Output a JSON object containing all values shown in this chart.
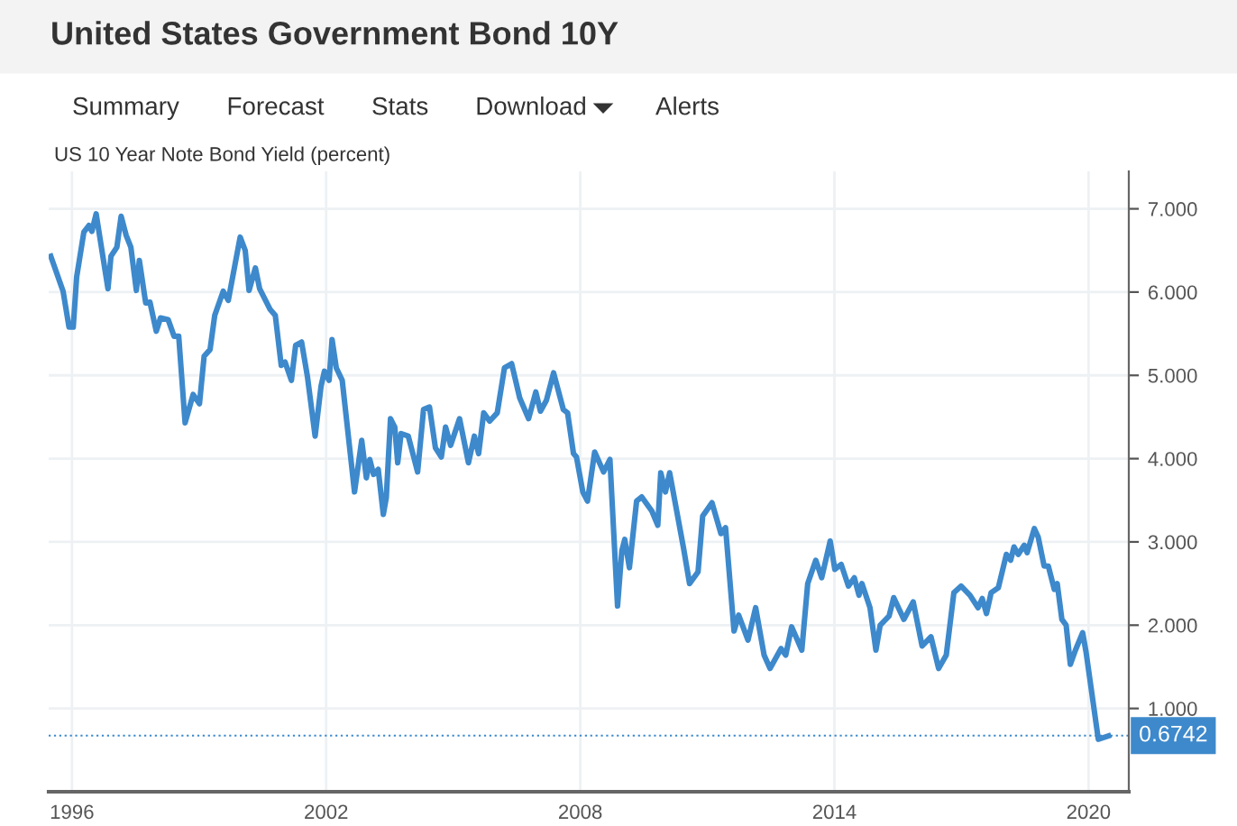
{
  "chart_data": {
    "type": "line",
    "title": "United States Government Bond 10Y",
    "subtitle": "US 10 Year Note Bond Yield (percent)",
    "annotations": [
      "Summary",
      "Forecast",
      "Stats",
      "Download",
      "Alerts"
    ],
    "x": [
      1995.5,
      1995.79,
      1995.93,
      1996.03,
      1996.11,
      1996.28,
      1996.4,
      1996.47,
      1996.57,
      1996.85,
      1996.92,
      1997.06,
      1997.16,
      1997.28,
      1997.39,
      1997.52,
      1997.59,
      1997.74,
      1997.84,
      1997.99,
      1998.09,
      1998.27,
      1998.41,
      1998.52,
      1998.67,
      1998.86,
      1999.01,
      1999.12,
      1999.26,
      1999.37,
      1999.57,
      1999.69,
      1999.97,
      2000.09,
      2000.18,
      2000.33,
      2000.43,
      2000.68,
      2000.8,
      2000.94,
      2001.03,
      2001.18,
      2001.28,
      2001.42,
      2001.56,
      2001.74,
      2001.88,
      2001.96,
      2002.07,
      2002.14,
      2002.24,
      2002.38,
      2002.67,
      2002.84,
      2002.95,
      2003.03,
      2003.12,
      2003.23,
      2003.35,
      2003.42,
      2003.52,
      2003.62,
      2003.69,
      2003.77,
      2003.94,
      2004.16,
      2004.3,
      2004.44,
      2004.58,
      2004.72,
      2004.82,
      2004.94,
      2005.15,
      2005.36,
      2005.5,
      2005.6,
      2005.72,
      2005.86,
      2006.04,
      2006.21,
      2006.38,
      2006.57,
      2006.78,
      2006.95,
      2007.06,
      2007.2,
      2007.37,
      2007.6,
      2007.7,
      2007.84,
      2007.91,
      2008.06,
      2008.17,
      2008.34,
      2008.55,
      2008.7,
      2008.88,
      2008.98,
      2009.05,
      2009.16,
      2009.33,
      2009.45,
      2009.69,
      2009.83,
      2009.9,
      2010.01,
      2010.11,
      2010.44,
      2010.58,
      2010.78,
      2010.89,
      2011.11,
      2011.32,
      2011.43,
      2011.63,
      2011.74,
      2011.96,
      2012.14,
      2012.34,
      2012.48,
      2012.74,
      2012.85,
      2012.99,
      2013.23,
      2013.37,
      2013.56,
      2013.7,
      2013.9,
      2014.01,
      2014.16,
      2014.33,
      2014.47,
      2014.58,
      2014.65,
      2014.84,
      2014.98,
      2015.08,
      2015.29,
      2015.4,
      2015.64,
      2015.86,
      2016.07,
      2016.28,
      2016.46,
      2016.64,
      2016.82,
      2016.99,
      2017.2,
      2017.39,
      2017.49,
      2017.59,
      2017.7,
      2017.87,
      2018.06,
      2018.16,
      2018.24,
      2018.34,
      2018.48,
      2018.55,
      2018.72,
      2018.81,
      2018.95,
      2019.05,
      2019.19,
      2019.26,
      2019.37,
      2019.47,
      2019.57,
      2019.69,
      2019.86,
      2019.94,
      2020.23,
      2020.47
    ],
    "series": [
      {
        "color": "#3d89cc",
        "values": [
          6.43,
          6.01,
          5.58,
          5.58,
          6.18,
          6.72,
          6.8,
          6.73,
          6.94,
          6.04,
          6.43,
          6.54,
          6.91,
          6.68,
          6.54,
          6.02,
          6.38,
          5.87,
          5.88,
          5.53,
          5.69,
          5.67,
          5.47,
          5.47,
          4.43,
          4.77,
          4.66,
          5.23,
          5.31,
          5.72,
          6.01,
          5.9,
          6.66,
          6.5,
          6.02,
          6.29,
          6.04,
          5.79,
          5.72,
          5.12,
          5.16,
          4.94,
          5.36,
          5.4,
          4.98,
          4.27,
          4.87,
          5.05,
          4.94,
          5.43,
          5.09,
          4.94,
          3.6,
          4.22,
          3.77,
          3.99,
          3.81,
          3.87,
          3.33,
          3.53,
          4.48,
          4.38,
          3.95,
          4.3,
          4.27,
          3.84,
          4.59,
          4.62,
          4.13,
          4.02,
          4.38,
          4.16,
          4.48,
          3.95,
          4.27,
          4.06,
          4.55,
          4.45,
          4.55,
          5.09,
          5.14,
          4.73,
          4.48,
          4.8,
          4.57,
          4.7,
          5.03,
          4.59,
          4.55,
          4.06,
          4.02,
          3.6,
          3.49,
          4.08,
          3.84,
          3.99,
          2.23,
          2.89,
          3.03,
          2.69,
          3.49,
          3.54,
          3.37,
          3.2,
          3.83,
          3.6,
          3.83,
          2.92,
          2.5,
          2.64,
          3.31,
          3.47,
          3.1,
          3.17,
          1.93,
          2.12,
          1.82,
          2.21,
          1.64,
          1.48,
          1.72,
          1.64,
          1.98,
          1.7,
          2.5,
          2.78,
          2.57,
          3.01,
          2.67,
          2.73,
          2.47,
          2.57,
          2.36,
          2.5,
          2.21,
          1.7,
          2.0,
          2.11,
          2.33,
          2.07,
          2.28,
          1.75,
          1.86,
          1.48,
          1.64,
          2.39,
          2.47,
          2.36,
          2.21,
          2.32,
          2.14,
          2.39,
          2.45,
          2.85,
          2.78,
          2.94,
          2.85,
          2.96,
          2.87,
          3.16,
          3.06,
          2.71,
          2.71,
          2.43,
          2.5,
          2.07,
          2.0,
          1.53,
          1.7,
          1.91,
          1.68,
          0.63,
          0.67
        ]
      }
    ],
    "xlim": [
      1995.45,
      2020.95
    ],
    "xticks": [
      1996,
      2002,
      2008,
      2014,
      2020
    ],
    "ylim": [
      0,
      7.45
    ],
    "yticks": [
      {
        "value": 1,
        "label": "1.000"
      },
      {
        "value": 2,
        "label": "2.000"
      },
      {
        "value": 3,
        "label": "3.000"
      },
      {
        "value": 4,
        "label": "4.000"
      },
      {
        "value": 5,
        "label": "5.000"
      },
      {
        "value": 6,
        "label": "6.000"
      },
      {
        "value": 7,
        "label": "7.000"
      }
    ],
    "ref_lines": [
      {
        "axis": "y",
        "value": 0.6742,
        "label": "0.6742",
        "color": "#3d89cc",
        "line_style": "dotted"
      }
    ],
    "grid": true,
    "legend": false,
    "marker": "none",
    "line_style": "solid"
  }
}
